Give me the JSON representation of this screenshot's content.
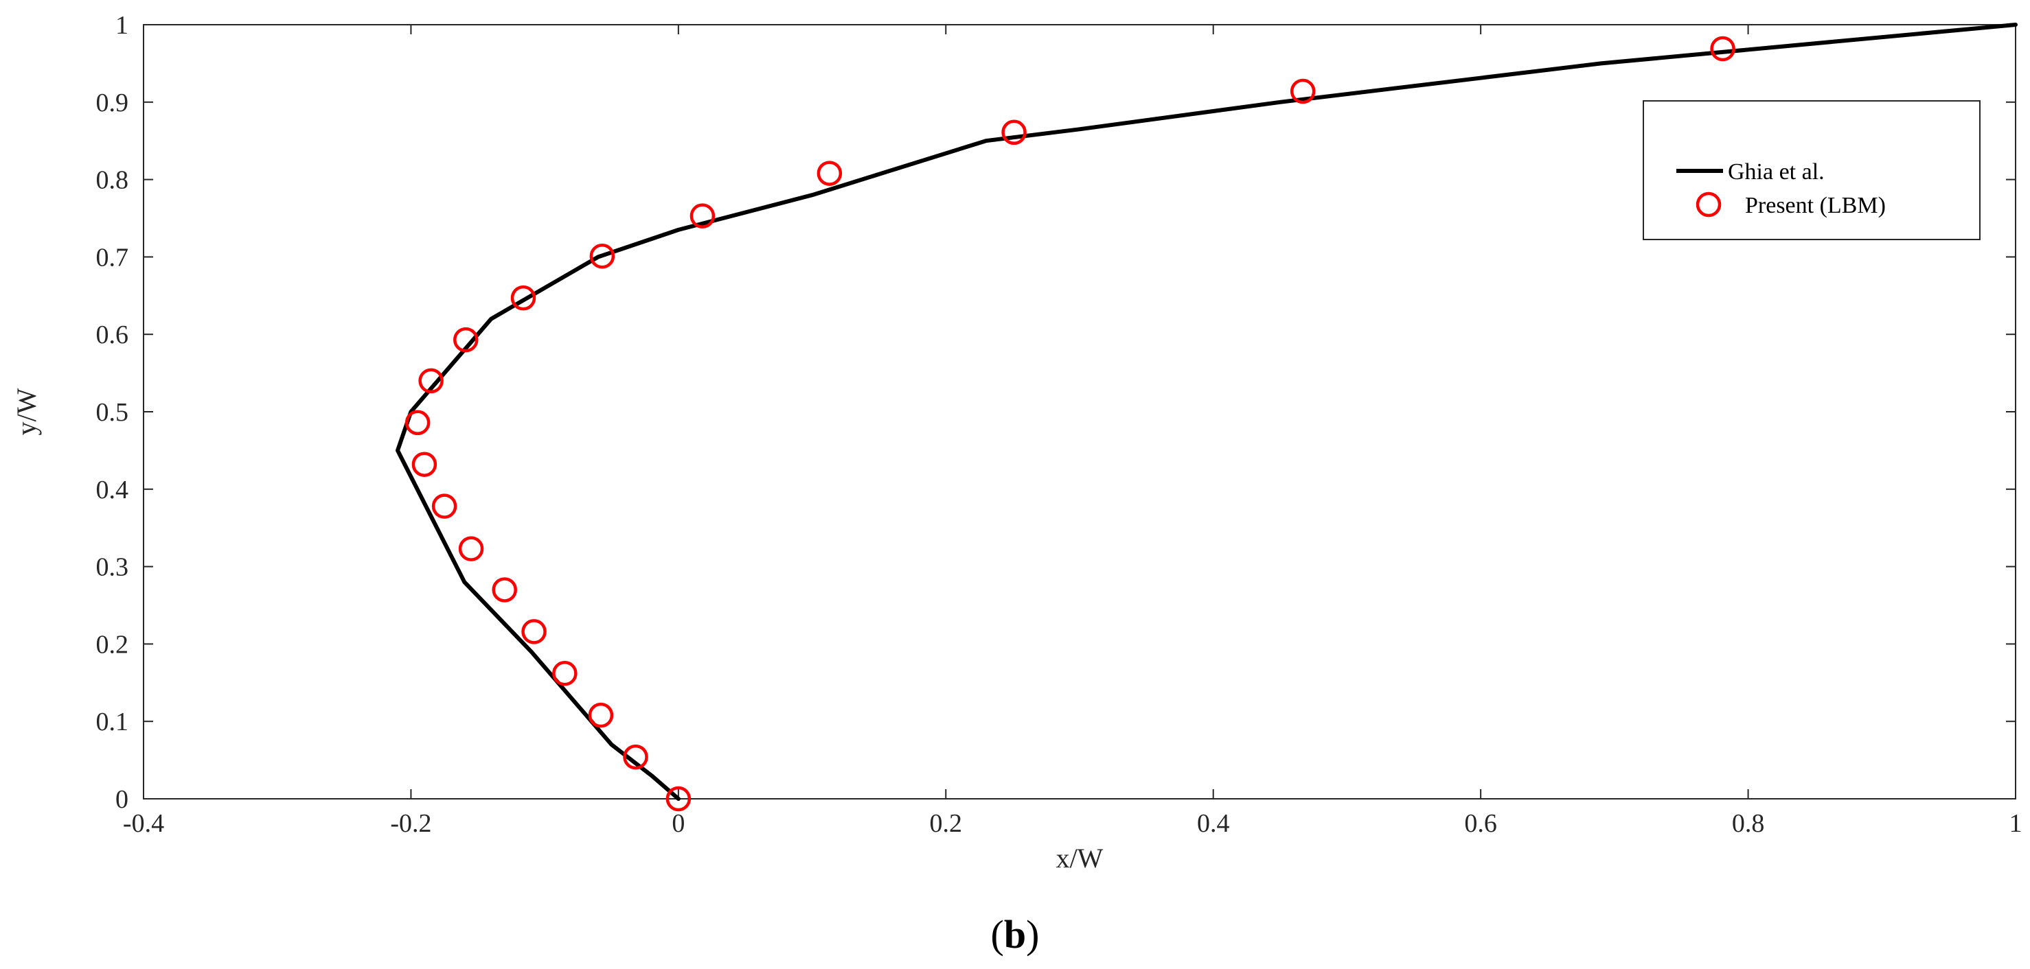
{
  "chart_data": {
    "type": "line",
    "xlabel": "x/W",
    "ylabel": "y/W",
    "xlim": [
      -0.4,
      1
    ],
    "ylim": [
      0,
      1
    ],
    "x_ticks": [
      -0.4,
      -0.2,
      0,
      0.2,
      0.4,
      0.6,
      0.8,
      1
    ],
    "x_tick_labels": [
      "-0.4",
      "-0.2",
      "0",
      "0.2",
      "0.4",
      "0.6",
      "0.8",
      "1"
    ],
    "y_ticks": [
      0,
      0.1,
      0.2,
      0.3,
      0.4,
      0.5,
      0.6,
      0.7,
      0.8,
      0.9,
      1
    ],
    "y_tick_labels": [
      "0",
      "0.1",
      "0.2",
      "0.3",
      "0.4",
      "0.5",
      "0.6",
      "0.7",
      "0.8",
      "0.9",
      "1"
    ],
    "grid": false,
    "legend_position": "top-right",
    "series": [
      {
        "name": "Ghia et al.",
        "style": "line",
        "color": "#000000",
        "points": [
          [
            0,
            0
          ],
          [
            -0.02,
            0.03
          ],
          [
            -0.05,
            0.07
          ],
          [
            -0.11,
            0.19
          ],
          [
            -0.16,
            0.28
          ],
          [
            -0.21,
            0.45
          ],
          [
            -0.2,
            0.5
          ],
          [
            -0.14,
            0.62
          ],
          [
            -0.06,
            0.7
          ],
          [
            0,
            0.735
          ],
          [
            0.1,
            0.78
          ],
          [
            0.23,
            0.85
          ],
          [
            0.3,
            0.865
          ],
          [
            0.45,
            0.9
          ],
          [
            0.69,
            0.95
          ],
          [
            1,
            1
          ]
        ]
      },
      {
        "name": "Present (LBM)",
        "style": "markers",
        "color": "#ff0000",
        "points": [
          [
            0,
            0
          ],
          [
            -0.032,
            0.054
          ],
          [
            -0.058,
            0.108
          ],
          [
            -0.085,
            0.162
          ],
          [
            -0.108,
            0.216
          ],
          [
            -0.13,
            0.27
          ],
          [
            -0.155,
            0.323
          ],
          [
            -0.175,
            0.378
          ],
          [
            -0.19,
            0.432
          ],
          [
            -0.195,
            0.486
          ],
          [
            -0.185,
            0.54
          ],
          [
            -0.159,
            0.593
          ],
          [
            -0.116,
            0.647
          ],
          [
            -0.057,
            0.701
          ],
          [
            0.018,
            0.753
          ],
          [
            0.113,
            0.808
          ],
          [
            0.251,
            0.861
          ],
          [
            0.467,
            0.914
          ],
          [
            0.781,
            0.969
          ]
        ]
      }
    ]
  },
  "caption": {
    "open": "(",
    "letter": "b",
    "close": ")"
  }
}
